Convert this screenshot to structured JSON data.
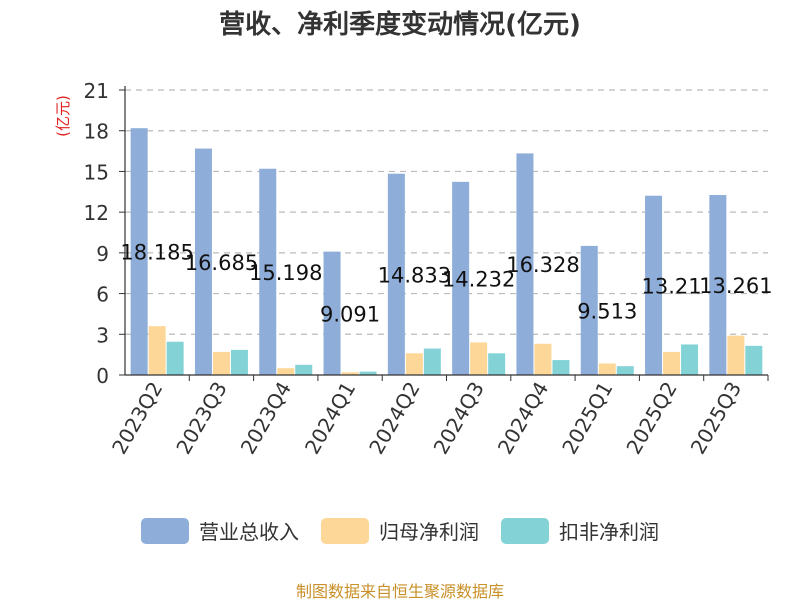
{
  "chart_data": {
    "type": "bar",
    "title": "营收、净利季度变动情况(亿元)",
    "ylabel": "(亿元)",
    "xlabel": "",
    "ylim": [
      0,
      21
    ],
    "yticks": [
      0,
      3,
      6,
      9,
      12,
      15,
      18,
      21
    ],
    "categories": [
      "2023Q2",
      "2023Q3",
      "2023Q4",
      "2024Q1",
      "2024Q2",
      "2024Q3",
      "2024Q4",
      "2025Q1",
      "2025Q2",
      "2025Q3"
    ],
    "series": [
      {
        "name": "营业总收入",
        "color": "#8eadd9",
        "values": [
          18.185,
          16.685,
          15.198,
          9.091,
          14.833,
          14.232,
          16.328,
          9.513,
          13.21,
          13.261
        ],
        "labels": [
          "18.185",
          "16.685",
          "15.198",
          "9.091",
          "14.833",
          "14.232",
          "16.328",
          "9.513",
          "13.21",
          "13.261"
        ]
      },
      {
        "name": "归母净利润",
        "color": "#fdd797",
        "values": [
          3.6,
          1.7,
          0.5,
          0.2,
          1.6,
          2.4,
          2.3,
          0.85,
          1.7,
          2.9
        ]
      },
      {
        "name": "扣非净利润",
        "color": "#83d3d6",
        "values": [
          2.45,
          1.85,
          0.75,
          0.25,
          1.95,
          1.6,
          1.1,
          0.65,
          2.25,
          2.15
        ]
      }
    ],
    "grid": true,
    "legend_position": "bottom"
  },
  "source": "制图数据来自恒生聚源数据库"
}
